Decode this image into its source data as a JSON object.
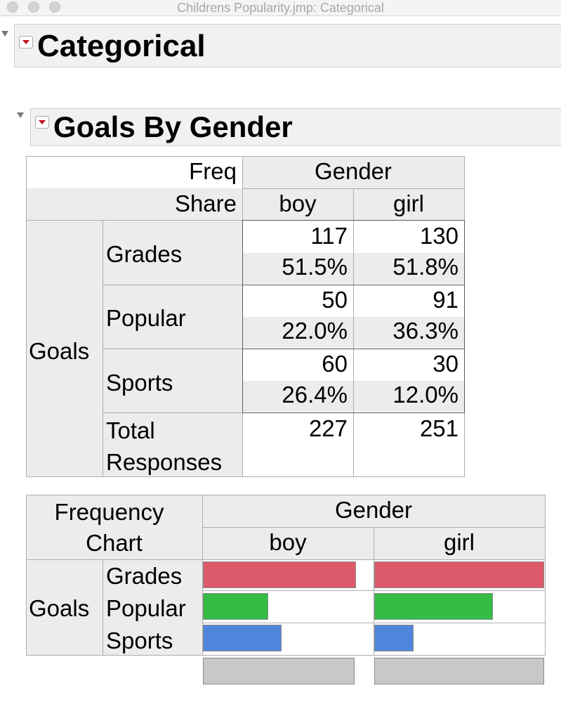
{
  "window": {
    "title": "Childrens Popularity.jmp: Categorical"
  },
  "outline": {
    "title": "Categorical"
  },
  "report": {
    "title": "Goals By Gender",
    "table": {
      "stat_labels": [
        "Freq",
        "Share"
      ],
      "column_var": "Gender",
      "columns": [
        "boy",
        "girl"
      ],
      "row_var": "Goals",
      "rows": [
        {
          "label": "Grades",
          "freq": [
            "117",
            "130"
          ],
          "share": [
            "51.5%",
            "51.8%"
          ]
        },
        {
          "label": "Popular",
          "freq": [
            "50",
            "91"
          ],
          "share": [
            "22.0%",
            "36.3%"
          ]
        },
        {
          "label": "Sports",
          "freq": [
            "60",
            "30"
          ],
          "share": [
            "26.4%",
            "12.0%"
          ]
        }
      ],
      "total_label_1": "Total",
      "total_label_2": "Responses",
      "totals": [
        "227",
        "251"
      ]
    },
    "freq_chart": {
      "header_1": "Frequency",
      "header_2": "Chart",
      "column_var": "Gender",
      "columns": [
        "boy",
        "girl"
      ],
      "row_var": "Goals",
      "rows": [
        "Grades",
        "Popular",
        "Sports"
      ]
    }
  },
  "chart_data": {
    "type": "bar",
    "title": "Frequency Chart",
    "categories": [
      "Grades",
      "Popular",
      "Sports"
    ],
    "series": [
      {
        "name": "boy",
        "values": [
          117,
          50,
          60
        ],
        "total": 227
      },
      {
        "name": "girl",
        "values": [
          130,
          91,
          30
        ],
        "total": 251
      }
    ],
    "colors": [
      "#dc5a6a",
      "#34bc44",
      "#4f86dc"
    ],
    "total_bar_color": "#c8c8c8",
    "ylim": [
      0,
      130
    ]
  }
}
